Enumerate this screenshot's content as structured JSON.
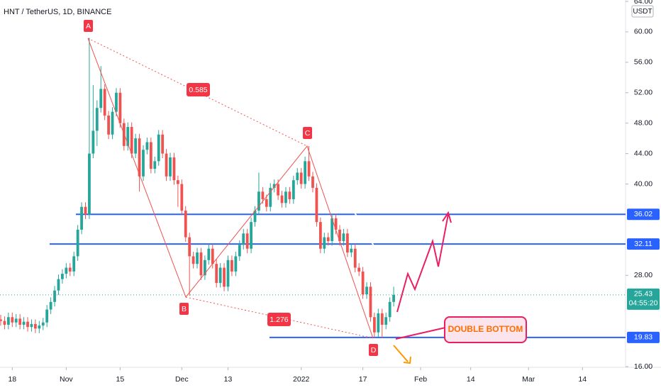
{
  "chart_data": {
    "type": "candlestick",
    "title": "HNT / TetherUS, 1D, BINANCE",
    "currency": "USDT",
    "up_color": "#26a69a",
    "down_color": "#ef5350",
    "categories": [
      null,
      null,
      null,
      null,
      null,
      null,
      null,
      null,
      null,
      null,
      null,
      null,
      null,
      null,
      null,
      null,
      null,
      null,
      null,
      null,
      null,
      null,
      null,
      null,
      null,
      null,
      null,
      null,
      null,
      null,
      null,
      null,
      null,
      null,
      null,
      null,
      null,
      null,
      null,
      null,
      null,
      null,
      null,
      null,
      null,
      null,
      null,
      null,
      null,
      null,
      null,
      null,
      null,
      null,
      null,
      null,
      null,
      null,
      null,
      null,
      null,
      null,
      null,
      null,
      null,
      null,
      null,
      null,
      null,
      null,
      null,
      null,
      null,
      null,
      null,
      null,
      null,
      null,
      null,
      null,
      null,
      null,
      null,
      null,
      null,
      null,
      null,
      null,
      null,
      null,
      null,
      null,
      null,
      null,
      null,
      null,
      null,
      null,
      null,
      null,
      null,
      null,
      null
    ],
    "open": [
      22.2,
      22.0,
      21.5,
      22.5,
      21.8,
      22.3,
      21.5,
      21.9,
      21.2,
      21.6,
      21.0,
      21.4,
      21.8,
      23.5,
      24.5,
      26.0,
      27.5,
      28.2,
      29.0,
      28.5,
      30.5,
      34.0,
      37.0,
      36.0,
      44.0,
      47.0,
      50.0,
      52.5,
      49.0,
      46.5,
      49.5,
      52.0,
      48.0,
      45.0,
      47.5,
      44.0,
      46.0,
      41.0,
      44.5,
      45.5,
      42.0,
      43.0,
      46.5,
      44.0,
      41.0,
      43.5,
      40.5,
      40.0,
      36.5,
      33.0,
      30.5,
      29.5,
      31.0,
      28.0,
      30.0,
      31.5,
      29.5,
      27.0,
      29.0,
      26.5,
      30.0,
      28.5,
      30.5,
      32.0,
      33.5,
      31.5,
      35.0,
      36.5,
      39.0,
      38.0,
      37.0,
      39.5,
      40.0,
      38.5,
      37.5,
      39.0,
      38.0,
      40.5,
      41.5,
      40.0,
      43.0,
      41.0,
      39.5,
      35.0,
      31.5,
      33.0,
      32.5,
      35.5,
      34.0,
      32.5,
      33.5,
      31.0,
      31.5,
      29.0,
      28.5,
      25.5,
      26.5,
      22.5,
      20.5,
      23.0,
      21.5,
      22.5,
      24.5
    ],
    "high": [
      22.8,
      22.6,
      23.1,
      23.1,
      22.9,
      22.9,
      22.5,
      22.5,
      22.2,
      22.2,
      22.0,
      22.4,
      24.1,
      25.1,
      26.6,
      28.1,
      28.8,
      29.6,
      29.6,
      31.1,
      34.6,
      37.6,
      37.6,
      59.2,
      53.0,
      51.0,
      55.5,
      53.1,
      49.6,
      50.1,
      52.6,
      52.6,
      48.6,
      48.1,
      48.1,
      46.6,
      46.6,
      45.1,
      46.1,
      46.1,
      43.6,
      47.1,
      47.1,
      44.6,
      44.1,
      44.1,
      41.1,
      40.6,
      37.1,
      33.6,
      31.1,
      31.6,
      31.6,
      30.6,
      32.1,
      32.1,
      30.1,
      29.6,
      29.6,
      30.6,
      30.6,
      31.1,
      32.6,
      34.1,
      34.1,
      35.6,
      37.1,
      41.5,
      39.6,
      38.6,
      40.1,
      40.6,
      40.6,
      39.1,
      39.6,
      39.6,
      41.1,
      42.1,
      42.1,
      43.6,
      45.0,
      41.6,
      40.1,
      35.6,
      33.6,
      33.6,
      36.1,
      36.1,
      34.6,
      34.1,
      34.1,
      32.1,
      32.1,
      29.6,
      29.1,
      27.1,
      27.1,
      23.1,
      23.6,
      23.6,
      23.1,
      25.1,
      26.5
    ],
    "low": [
      21.4,
      20.9,
      20.9,
      21.2,
      21.2,
      20.9,
      20.9,
      20.6,
      20.6,
      20.4,
      20.4,
      20.8,
      21.2,
      22.9,
      23.9,
      25.4,
      26.9,
      27.6,
      27.9,
      27.9,
      29.9,
      33.4,
      35.4,
      35.4,
      43.4,
      45.0,
      49.4,
      48.4,
      45.9,
      45.9,
      48.9,
      47.4,
      44.4,
      44.4,
      43.4,
      43.4,
      39.0,
      40.4,
      43.9,
      41.4,
      41.4,
      42.4,
      43.4,
      40.4,
      40.4,
      39.9,
      37.0,
      35.9,
      32.4,
      25.3,
      28.9,
      28.9,
      27.4,
      27.4,
      29.4,
      28.9,
      26.4,
      26.4,
      25.9,
      25.9,
      27.9,
      27.9,
      29.9,
      31.4,
      30.9,
      30.9,
      34.4,
      35.9,
      37.4,
      36.4,
      36.4,
      38.9,
      37.9,
      36.9,
      36.9,
      37.4,
      37.4,
      39.9,
      39.4,
      39.4,
      40.4,
      38.9,
      34.4,
      30.9,
      30.9,
      31.9,
      31.9,
      33.4,
      31.9,
      31.9,
      30.4,
      30.4,
      28.4,
      27.9,
      24.9,
      24.9,
      21.9,
      19.8,
      19.9,
      19.8,
      20.9,
      21.9,
      23.9
    ],
    "close": [
      22.0,
      21.5,
      22.5,
      21.8,
      22.3,
      21.5,
      21.9,
      21.2,
      21.6,
      21.0,
      21.4,
      21.8,
      23.5,
      24.5,
      26.0,
      27.5,
      28.2,
      29.0,
      28.5,
      30.5,
      34.0,
      37.0,
      36.0,
      44.0,
      47.0,
      50.0,
      52.5,
      49.0,
      46.5,
      49.5,
      52.0,
      48.0,
      45.0,
      47.5,
      44.0,
      46.0,
      41.0,
      44.5,
      45.5,
      42.0,
      43.0,
      46.5,
      44.0,
      41.0,
      43.5,
      40.5,
      40.0,
      36.5,
      33.0,
      30.5,
      29.5,
      31.0,
      28.0,
      30.0,
      31.5,
      29.5,
      27.0,
      29.0,
      26.5,
      30.0,
      28.5,
      30.5,
      32.0,
      33.5,
      31.5,
      35.0,
      36.5,
      39.0,
      38.0,
      37.0,
      39.5,
      40.0,
      38.5,
      37.5,
      39.0,
      38.0,
      40.5,
      41.5,
      40.0,
      43.0,
      41.0,
      39.5,
      35.0,
      31.5,
      33.0,
      32.5,
      35.5,
      34.0,
      32.5,
      33.5,
      31.0,
      31.5,
      29.0,
      28.5,
      25.5,
      26.5,
      22.5,
      20.5,
      23.0,
      21.5,
      22.5,
      24.5,
      25.43
    ],
    "xlim": [
      0,
      162
    ],
    "xticks": [
      {
        "value": 3,
        "label": "18"
      },
      {
        "value": 17,
        "label": "Nov"
      },
      {
        "value": 31,
        "label": "15"
      },
      {
        "value": 47,
        "label": "Dec"
      },
      {
        "value": 59,
        "label": "13"
      },
      {
        "value": 78,
        "label": "2022"
      },
      {
        "value": 94,
        "label": "17"
      },
      {
        "value": 109,
        "label": "Feb"
      },
      {
        "value": 122,
        "label": "14"
      },
      {
        "value": 137,
        "label": "Mar"
      },
      {
        "value": 151,
        "label": "14"
      }
    ],
    "ylim": [
      16,
      64
    ],
    "yticks": [
      {
        "value": 16,
        "label": "16.00"
      },
      {
        "value": 28,
        "label": "28.00"
      },
      {
        "value": 40,
        "label": "40.00"
      },
      {
        "value": 44,
        "label": "44.00"
      },
      {
        "value": 48,
        "label": "48.00"
      },
      {
        "value": 52,
        "label": "52.00"
      },
      {
        "value": 56,
        "label": "56.00"
      },
      {
        "value": 60,
        "label": "60.00"
      },
      {
        "value": 64,
        "label": "64.00"
      }
    ],
    "levels": [
      {
        "value": 36.02,
        "color": "#2962ff"
      },
      {
        "value": 32.11,
        "color": "#2962ff"
      },
      {
        "value": 19.83,
        "color": "#2962ff"
      }
    ],
    "last_price": {
      "value": 25.43,
      "countdown": "04:55:20",
      "color": "#26a69a"
    },
    "annotations": {
      "point_a": "A",
      "point_b": "B",
      "point_c": "C",
      "point_d": "D",
      "ratio_ac": "0.585",
      "ratio_bd": "1.276",
      "pattern": "DOUBLE BOTTOM"
    }
  }
}
